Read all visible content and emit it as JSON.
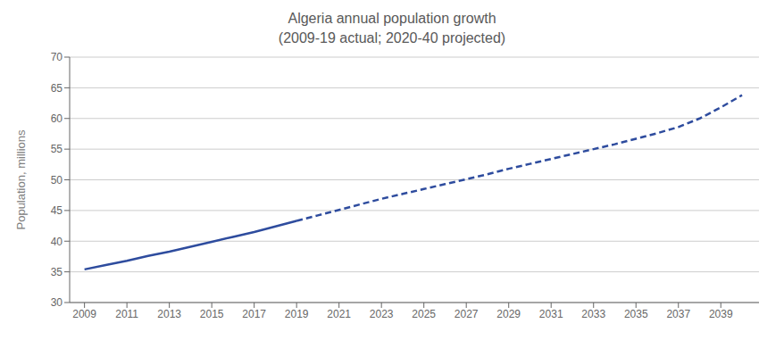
{
  "chart_data": {
    "type": "line",
    "title": "Algeria annual population growth",
    "subtitle": "(2009-19 actual; 2020-40 projected)",
    "ylabel": "Population, millions",
    "x": [
      2009,
      2010,
      2011,
      2012,
      2013,
      2014,
      2015,
      2016,
      2017,
      2018,
      2019,
      2020,
      2021,
      2022,
      2023,
      2024,
      2025,
      2026,
      2027,
      2028,
      2029,
      2030,
      2031,
      2032,
      2033,
      2034,
      2035,
      2036,
      2037,
      2038,
      2039,
      2040
    ],
    "series": [
      {
        "color": "#2E4C9E",
        "line_style": "solid",
        "values": [
          35.4,
          36.1,
          36.8,
          37.6,
          38.3,
          39.1,
          39.9,
          40.7,
          41.5,
          42.4,
          43.3,
          null,
          null,
          null,
          null,
          null,
          null,
          null,
          null,
          null,
          null,
          null,
          null,
          null,
          null,
          null,
          null,
          null,
          null,
          null,
          null,
          null
        ]
      },
      {
        "color": "#2E4C9E",
        "line_style": "dashed",
        "values": [
          null,
          null,
          null,
          null,
          null,
          null,
          null,
          null,
          null,
          null,
          43.3,
          44.2,
          45.1,
          46.0,
          46.9,
          47.7,
          48.5,
          49.3,
          50.1,
          50.9,
          51.8,
          52.6,
          53.4,
          54.2,
          55.0,
          55.8,
          56.7,
          57.6,
          58.6,
          60.0,
          61.8,
          63.8
        ]
      }
    ],
    "xlim": [
      2008.3,
      2040.8
    ],
    "xticks": [
      2009,
      2011,
      2013,
      2015,
      2017,
      2019,
      2021,
      2023,
      2025,
      2027,
      2029,
      2031,
      2033,
      2035,
      2037,
      2039
    ],
    "ylim": [
      30,
      70
    ],
    "yticks": [
      30,
      35,
      40,
      45,
      50,
      55,
      60,
      65,
      70
    ],
    "grid": true
  }
}
